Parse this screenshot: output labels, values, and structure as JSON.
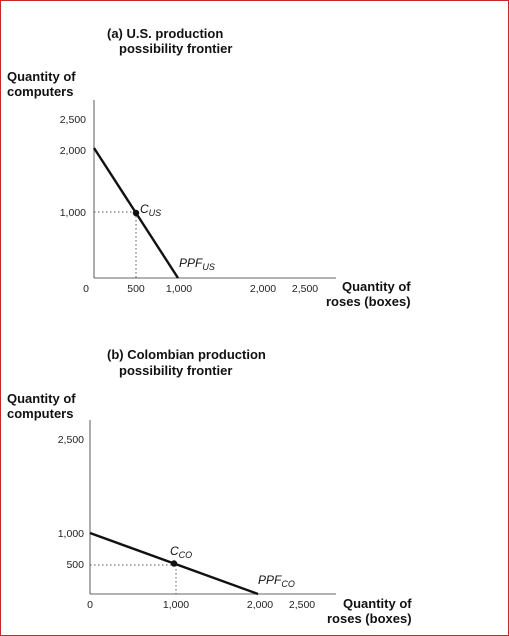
{
  "chart_data": [
    {
      "type": "line",
      "title": "(a) U.S. production",
      "subtitle": "possibility frontier",
      "ylabel": [
        "Quantity of",
        "computers"
      ],
      "xlabel": [
        "Quantity of",
        "roses (boxes)"
      ],
      "x_ticks": [
        "0",
        "500",
        "1,000",
        "2,000",
        "2,500"
      ],
      "y_ticks": [
        "1,000",
        "2,000",
        "2,500"
      ],
      "xlim": [
        0,
        2500
      ],
      "ylim": [
        0,
        2500
      ],
      "series": [
        {
          "name": "PPF",
          "subscript": "US",
          "x": [
            0,
            1000
          ],
          "y": [
            2000,
            0
          ]
        }
      ],
      "point": {
        "label": "C",
        "subscript": "US",
        "x": 500,
        "y": 1000
      }
    },
    {
      "type": "line",
      "title": "(b) Colombian production",
      "subtitle": "possibility frontier",
      "ylabel": [
        "Quantity of",
        "computers"
      ],
      "xlabel": [
        "Quantity of",
        "roses (boxes)"
      ],
      "x_ticks": [
        "0",
        "1,000",
        "2,000",
        "2,500"
      ],
      "y_ticks": [
        "500",
        "1,000",
        "2,500"
      ],
      "xlim": [
        0,
        2500
      ],
      "ylim": [
        0,
        2500
      ],
      "series": [
        {
          "name": "PPF",
          "subscript": "CO",
          "x": [
            0,
            2000
          ],
          "y": [
            1000,
            0
          ]
        }
      ],
      "point": {
        "label": "C",
        "subscript": "CO",
        "x": 1000,
        "y": 500
      }
    }
  ]
}
